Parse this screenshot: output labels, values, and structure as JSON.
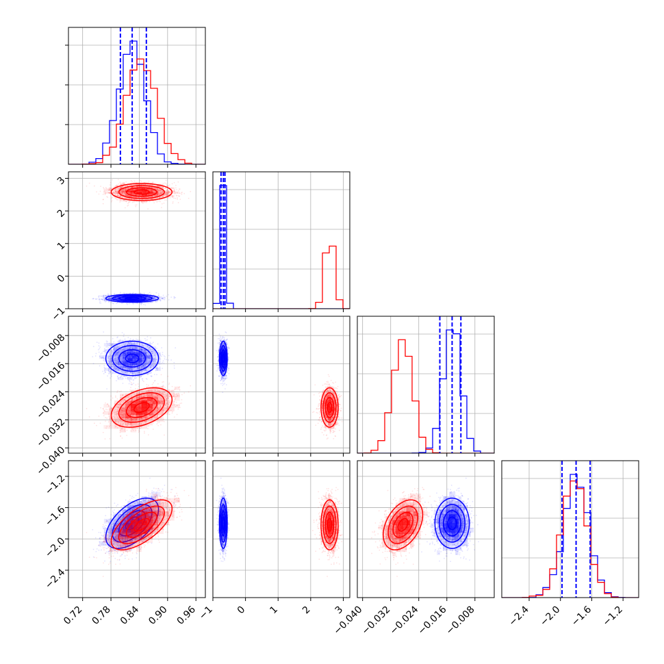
{
  "colors": {
    "model_a": "#0000ff",
    "model_b": "#ff0000",
    "frame": "#000000",
    "grid": "#b0b0b0"
  },
  "chart_data": {
    "type": "corner",
    "grid": true,
    "series": [
      {
        "color": "#0000ff",
        "means": [
          0.825,
          -0.68,
          -0.0145,
          -1.8
        ],
        "sds": [
          0.028,
          0.06,
          0.0024,
          0.16
        ],
        "correlations": [
          [
            0,
            3,
            0.55
          ]
        ],
        "quantiles": [
          [
            0.8,
            0.825,
            0.855
          ],
          [
            -0.75,
            -0.68,
            -0.63
          ],
          [
            -0.018,
            -0.0145,
            -0.012
          ],
          [
            -1.98,
            -1.8,
            -1.62
          ]
        ]
      },
      {
        "color": "#ff0000",
        "means": [
          0.845,
          2.58,
          -0.0285,
          -1.82
        ],
        "sds": [
          0.032,
          0.13,
          0.0028,
          0.16
        ],
        "correlations": [
          [
            0,
            2,
            0.4
          ],
          [
            0,
            3,
            0.65
          ],
          [
            2,
            3,
            0.4
          ]
        ]
      }
    ],
    "panels": [
      {
        "id": 0,
        "range": [
          0.69,
          0.98
        ],
        "ticks": [
          "0.72",
          "0.78",
          "0.84",
          "0.90",
          "0.96"
        ],
        "tick_values": [
          0.72,
          0.78,
          0.84,
          0.9,
          0.96
        ]
      },
      {
        "id": 1,
        "range": [
          -1.0,
          3.2
        ],
        "ticks": [
          "−1",
          "0",
          "1",
          "2",
          "3"
        ],
        "tick_values": [
          -1,
          0,
          1,
          2,
          3
        ]
      },
      {
        "id": 2,
        "range": [
          -0.0415,
          -0.0025
        ],
        "ticks": [
          "−0.040",
          "−0.032",
          "−0.024",
          "−0.016",
          "−0.008"
        ],
        "tick_values": [
          -0.04,
          -0.032,
          -0.024,
          -0.016,
          -0.008
        ]
      },
      {
        "id": 3,
        "range": [
          -2.75,
          -1.0
        ],
        "ticks": [
          "−2.4",
          "−2.0",
          "−1.6",
          "−1.2"
        ],
        "tick_values": [
          -2.4,
          -2.0,
          -1.6,
          -1.2
        ]
      }
    ]
  }
}
